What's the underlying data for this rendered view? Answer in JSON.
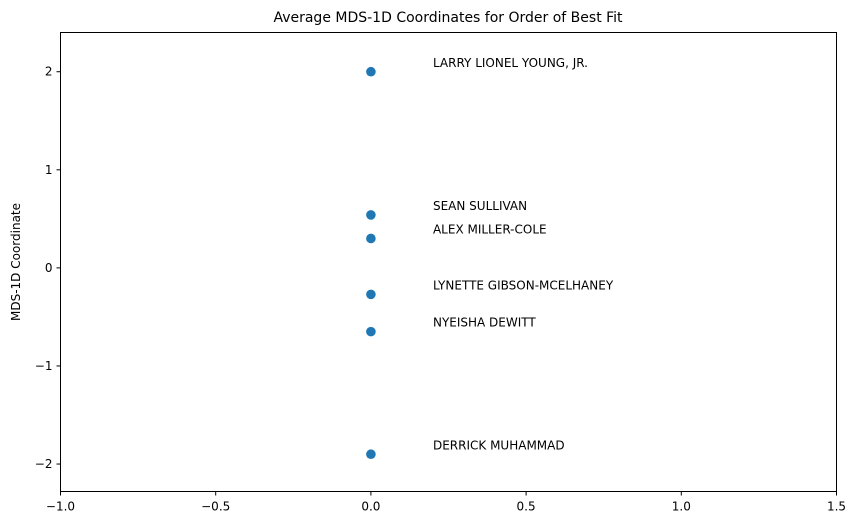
{
  "chart_data": {
    "type": "scatter",
    "title": "Average MDS-1D Coordinates for Order of Best Fit",
    "xlabel": "",
    "ylabel": "MDS-1D Coordinate",
    "xlim": [
      -1.0,
      1.5
    ],
    "ylim": [
      -2.28,
      2.4
    ],
    "grid": false,
    "point_color": "#1f77b4",
    "x_ticks": [
      -1.0,
      -0.5,
      0.0,
      0.5,
      1.0,
      1.5
    ],
    "x_tick_labels": [
      "−1.0",
      "−0.5",
      "0.0",
      "0.5",
      "1.0",
      "1.5"
    ],
    "y_ticks": [
      2,
      1,
      0,
      -1,
      -2
    ],
    "y_tick_labels": [
      "2",
      "1",
      "0",
      "−1",
      "−2"
    ],
    "label_offset": [
      0.2,
      0.05
    ],
    "points": [
      {
        "label": "LARRY LIONEL YOUNG, JR.",
        "x": 0.0,
        "y": 2.0
      },
      {
        "label": "SEAN SULLIVAN",
        "x": 0.0,
        "y": 0.54
      },
      {
        "label": "ALEX MILLER-COLE",
        "x": 0.0,
        "y": 0.3
      },
      {
        "label": "LYNETTE GIBSON-MCELHANEY",
        "x": 0.0,
        "y": -0.27
      },
      {
        "label": "NYEISHA DEWITT",
        "x": 0.0,
        "y": -0.65
      },
      {
        "label": "DERRICK MUHAMMAD",
        "x": 0.0,
        "y": -1.9
      }
    ]
  }
}
